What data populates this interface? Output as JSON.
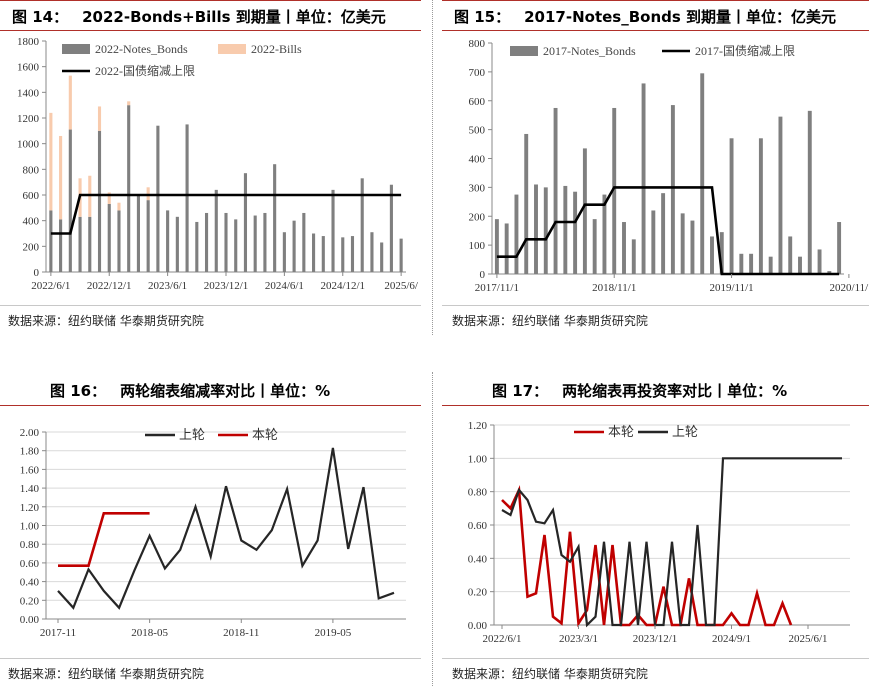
{
  "source_text": "数据来源：纽约联储 华泰期货研究院",
  "panels": [
    {
      "fig_num": "图 14：",
      "title": "2022-Bonds+Bills 到期量丨单位：亿美元",
      "chart_data": {
        "type": "bar",
        "stacked": true,
        "series": [
          {
            "name": "2022-Notes_Bonds",
            "color": "#7f7f7f",
            "values": [
              480,
              410,
              1110,
              430,
              430,
              1100,
              530,
              480,
              1300,
              600,
              560,
              1140,
              480,
              430,
              1150,
              390,
              460,
              640,
              460,
              410,
              770,
              440,
              460,
              840,
              310,
              400,
              460,
              300,
              280,
              640,
              270,
              280,
              730,
              310,
              230,
              680,
              260
            ]
          },
          {
            "name": "2022-Bills",
            "color": "#f8cbad",
            "values": [
              760,
              650,
              420,
              300,
              320,
              190,
              90,
              60,
              30,
              0,
              100,
              0,
              0,
              0,
              0,
              0,
              0,
              0,
              0,
              0,
              0,
              0,
              0,
              0,
              0,
              0,
              0,
              0,
              0,
              0,
              0,
              0,
              0,
              0,
              0,
              0,
              0
            ]
          },
          {
            "name": "2022-国债缩减上限",
            "type": "line",
            "color": "#000000",
            "values": [
              300,
              300,
              300,
              600,
              600,
              600,
              600,
              600,
              600,
              600,
              600,
              600,
              600,
              600,
              600,
              600,
              600,
              600,
              600,
              600,
              600,
              600,
              600,
              600,
              600,
              600,
              600,
              600,
              600,
              600,
              600,
              600,
              600,
              600,
              600,
              600,
              600
            ]
          }
        ],
        "x_tick_labels": [
          "2022/6/1",
          "2022/12/1",
          "2023/6/1",
          "2023/12/1",
          "2024/6/1",
          "2024/12/1",
          "2025/6/"
        ],
        "x_tick_positions": [
          0,
          6,
          12,
          18,
          24,
          30,
          36
        ],
        "ylim": [
          0,
          1800
        ],
        "yticks": [
          0,
          200,
          400,
          600,
          800,
          1000,
          1200,
          1400,
          1600,
          1800
        ],
        "legend_position": "top-left"
      }
    },
    {
      "fig_num": "图 15：",
      "title": "2017-Notes_Bonds 到期量丨单位：亿美元",
      "chart_data": {
        "type": "bar",
        "series": [
          {
            "name": "2017-Notes_Bonds",
            "color": "#7f7f7f",
            "values": [
              190,
              175,
              275,
              485,
              310,
              300,
              575,
              305,
              285,
              435,
              190,
              275,
              575,
              180,
              120,
              660,
              220,
              280,
              585,
              210,
              185,
              695,
              130,
              145,
              470,
              70,
              70,
              470,
              60,
              545,
              130,
              60,
              565,
              85,
              10,
              180
            ]
          },
          {
            "name": "2017-国债缩减上限",
            "type": "line",
            "color": "#000000",
            "values": [
              60,
              60,
              60,
              120,
              120,
              120,
              180,
              180,
              180,
              240,
              240,
              240,
              300,
              300,
              300,
              300,
              300,
              300,
              300,
              300,
              300,
              300,
              300,
              0,
              0,
              0,
              0,
              0,
              0,
              0,
              0,
              0,
              0,
              0,
              0,
              0
            ]
          }
        ],
        "x_tick_labels": [
          "2017/11/1",
          "2018/11/1",
          "2019/11/1",
          "2020/11/"
        ],
        "x_tick_positions": [
          0,
          12,
          24,
          36
        ],
        "ylim": [
          0,
          800
        ],
        "yticks": [
          0,
          100,
          200,
          300,
          400,
          500,
          600,
          700,
          800
        ],
        "legend_position": "top-left"
      }
    },
    {
      "fig_num": "图 16：",
      "title": "两轮缩表缩减率对比丨单位：%",
      "chart_data": {
        "type": "line",
        "series": [
          {
            "name": "上轮",
            "color": "#262626",
            "values": [
              0.3,
              0.12,
              0.53,
              0.3,
              0.12,
              0.52,
              0.89,
              0.54,
              0.74,
              1.2,
              0.67,
              1.42,
              0.84,
              0.74,
              0.95,
              1.39,
              0.57,
              0.84,
              1.83,
              0.75,
              1.41,
              0.22,
              0.28
            ]
          },
          {
            "name": "本轮",
            "color": "#c00000",
            "values": [
              0.57,
              0.57,
              0.57,
              1.13,
              1.13,
              1.13,
              1.13
            ]
          }
        ],
        "x_tick_labels": [
          "2017-11",
          "2018-05",
          "2018-11",
          "2019-05"
        ],
        "x_tick_positions": [
          0,
          6,
          12,
          18
        ],
        "ylim": [
          0,
          2.0
        ],
        "yticks": [
          "0.00",
          "0.20",
          "0.40",
          "0.60",
          "0.80",
          "1.00",
          "1.20",
          "1.40",
          "1.60",
          "1.80",
          "2.00"
        ],
        "legend_position": "top"
      }
    },
    {
      "fig_num": "图 17：",
      "title": "两轮缩表再投资率对比丨单位：%",
      "chart_data": {
        "type": "line",
        "series": [
          {
            "name": "本轮",
            "color": "#c00000",
            "values": [
              0.75,
              0.7,
              0.81,
              0.17,
              0.19,
              0.54,
              0.05,
              0.01,
              0.56,
              0.01,
              0.09,
              0.48,
              0.0,
              0.48,
              0.0,
              0.0,
              0.06,
              0.0,
              0.0,
              0.23,
              0.0,
              0.0,
              0.28,
              0.0,
              0.0,
              0.0,
              0.0,
              0.07,
              0.0,
              0.0,
              0.19,
              0.0,
              0.0,
              0.13,
              0.0
            ]
          },
          {
            "name": "上轮",
            "color": "#262626",
            "values": [
              0.69,
              0.66,
              0.81,
              0.75,
              0.62,
              0.61,
              0.69,
              0.42,
              0.38,
              0.47,
              0.0,
              0.05,
              0.5,
              0.0,
              0.0,
              0.5,
              0.0,
              0.5,
              0.0,
              0.0,
              0.5,
              0.0,
              0.0,
              0.6,
              0.0,
              0.0,
              1.0,
              1.0,
              1.0,
              1.0,
              1.0,
              1.0,
              1.0,
              1.0,
              1.0,
              1.0,
              1.0,
              1.0,
              1.0,
              1.0,
              1.0
            ]
          }
        ],
        "x_tick_labels": [
          "2022/6/1",
          "2023/3/1",
          "2023/12/1",
          "2024/9/1",
          "2025/6/1"
        ],
        "x_tick_positions": [
          0,
          9,
          18,
          27,
          36
        ],
        "ylim": [
          0,
          1.2
        ],
        "yticks": [
          "0.00",
          "0.20",
          "0.40",
          "0.60",
          "0.80",
          "1.00",
          "1.20"
        ],
        "legend_position": "top"
      }
    }
  ]
}
